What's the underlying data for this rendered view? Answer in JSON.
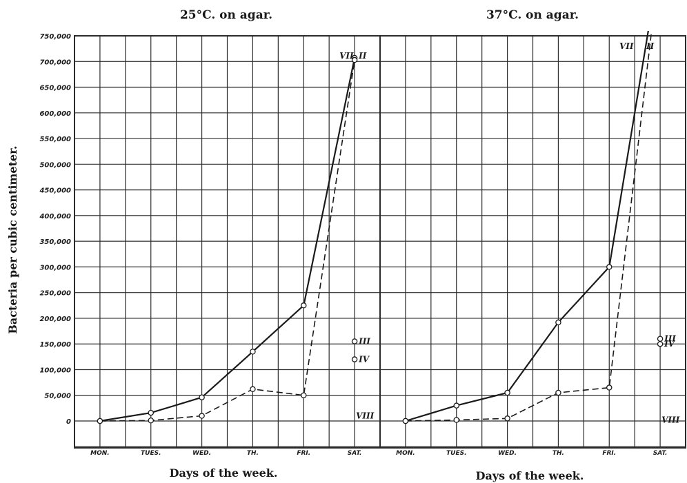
{
  "chart_data": {
    "type": "line",
    "ylabel": "Bacteria per cubic centimeter.",
    "yticks": [
      "750,000",
      "700,000",
      "650,000",
      "600,000",
      "550,000",
      "500,000",
      "450,000",
      "400,000",
      "350,000",
      "300,000",
      "250,000",
      "200,000",
      "150,000",
      "100,000",
      "50,000",
      "0"
    ],
    "ylim": [
      -50000,
      750000
    ],
    "grid": true,
    "panels": [
      {
        "title": "25°C. on agar.",
        "xlabel": "Days of the week.",
        "categories": [
          "MON.",
          "TUES.",
          "WED.",
          "TH.",
          "FRI.",
          "SAT."
        ],
        "series": [
          {
            "name": "II",
            "style": "solid",
            "values": [
              0,
              16000,
              46000,
              135000,
              225000,
              707000
            ]
          },
          {
            "name": "VII",
            "style": "dashed",
            "values": [
              0,
              1000,
              10000,
              62000,
              50000,
              703000
            ]
          }
        ],
        "end_markers": [
          {
            "name": "III",
            "value": 155000
          },
          {
            "name": "IV",
            "value": 120000
          },
          {
            "name": "VIII",
            "value": 10000
          }
        ]
      },
      {
        "title": "37°C. on agar.",
        "xlabel": "Days of the week.",
        "categories": [
          "MON.",
          "TUES.",
          "WED.",
          "TH.",
          "FRI.",
          "SAT."
        ],
        "series": [
          {
            "name": "VII",
            "style": "solid",
            "values": [
              0,
              30000,
              55000,
              192000,
              300000,
              900000
            ]
          },
          {
            "name": "II",
            "style": "dashed",
            "values": [
              0,
              2000,
              5000,
              55000,
              65000,
              900000
            ]
          }
        ],
        "end_markers": [
          {
            "name": "III",
            "value": 160000
          },
          {
            "name": "IV",
            "value": 150000
          },
          {
            "name": "VIII",
            "value": 2000
          }
        ]
      }
    ]
  }
}
